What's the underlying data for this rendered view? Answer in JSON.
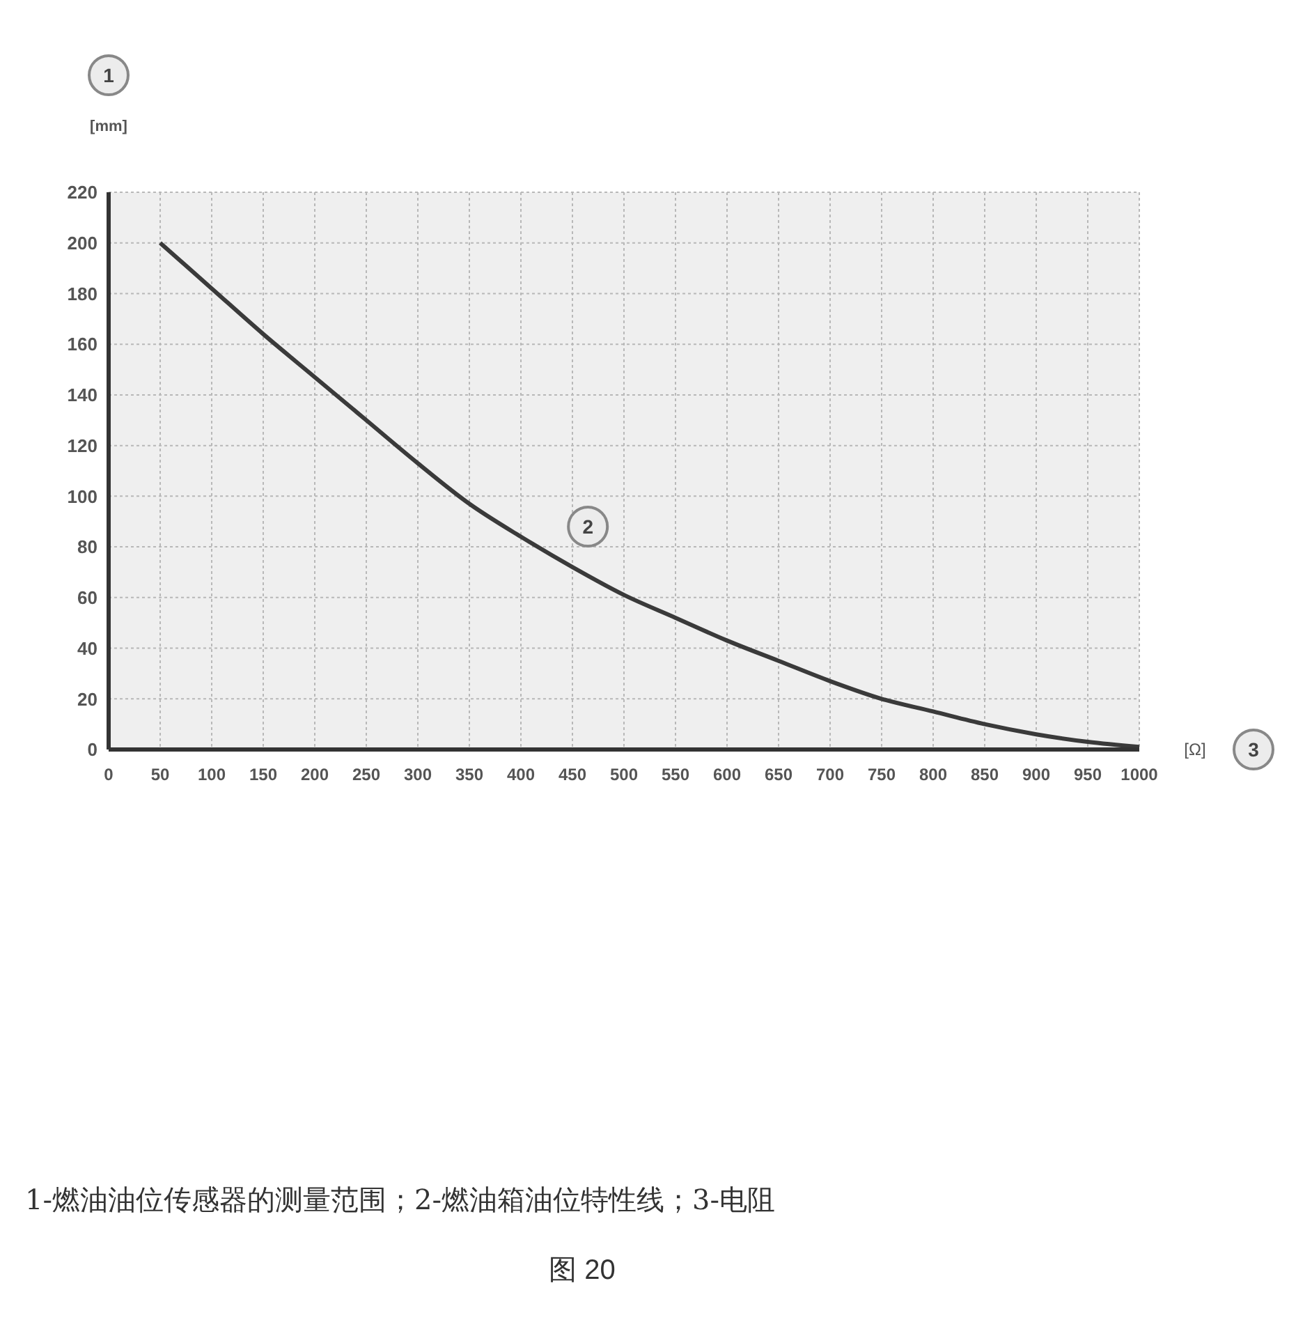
{
  "chart_data": {
    "type": "line",
    "title": "图 20",
    "xlabel": "[Ω]",
    "ylabel": "[mm]",
    "annotations": [
      "1",
      "3",
      {
        "text": "2",
        "x": 465,
        "y": 88
      },
      "1-燃油油位传感器的测量范围；2-燃油箱油位特性线；3-电阻"
    ],
    "x": [
      50,
      100,
      150,
      200,
      250,
      300,
      350,
      400,
      450,
      500,
      550,
      600,
      650,
      700,
      750,
      800,
      850,
      900,
      950,
      1000
    ],
    "series": [
      {
        "color": "#3a3a3a",
        "values": [
          200,
          182,
          164,
          147,
          130,
          113,
          97,
          84,
          72,
          61,
          52,
          43,
          35,
          27,
          20,
          15,
          10,
          6,
          3,
          1
        ]
      }
    ],
    "xlim": [
      0,
      1000
    ],
    "xticks": [
      0,
      50,
      100,
      150,
      200,
      250,
      300,
      350,
      400,
      450,
      500,
      550,
      600,
      650,
      700,
      750,
      800,
      850,
      900,
      950,
      1000
    ],
    "ylim": [
      0,
      220
    ],
    "yticks": [
      0,
      20,
      40,
      60,
      80,
      100,
      120,
      140,
      160,
      180,
      200,
      220
    ],
    "grid": true,
    "legend": false,
    "marker": "none",
    "line_style": "solid"
  }
}
